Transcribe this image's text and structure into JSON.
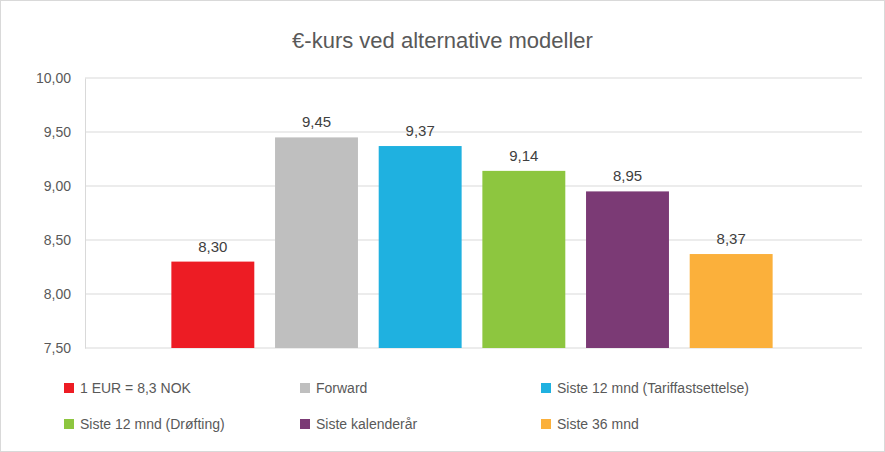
{
  "chart_data": {
    "type": "bar",
    "title": "€-kurs ved alternative modeller",
    "categories": [
      "1 EUR = 8,3 NOK",
      "Forward",
      "Siste 12 mnd (Tariffastsettelse)",
      "Siste 12 mnd (Drøfting)",
      "Siste kalenderår",
      "Siste 36 mnd"
    ],
    "values": [
      8.3,
      9.45,
      9.37,
      9.14,
      8.95,
      8.37
    ],
    "value_labels": [
      "8,30",
      "9,45",
      "9,37",
      "9,14",
      "8,95",
      "8,37"
    ],
    "colors": [
      "#ed1c24",
      "#bfbfbf",
      "#1fb1e0",
      "#8dc63f",
      "#7b3a75",
      "#fbb03b"
    ],
    "ylim": [
      7.5,
      10.0
    ],
    "yticks": [
      {
        "value": 7.5,
        "label": "7,50"
      },
      {
        "value": 8.0,
        "label": "8,00"
      },
      {
        "value": 8.5,
        "label": "8,50"
      },
      {
        "value": 9.0,
        "label": "9,00"
      },
      {
        "value": 9.5,
        "label": "9,50"
      },
      {
        "value": 10.0,
        "label": "10,00"
      }
    ],
    "grid": true,
    "data_labels": true,
    "tick_labels": "y",
    "legend": "bottom"
  }
}
